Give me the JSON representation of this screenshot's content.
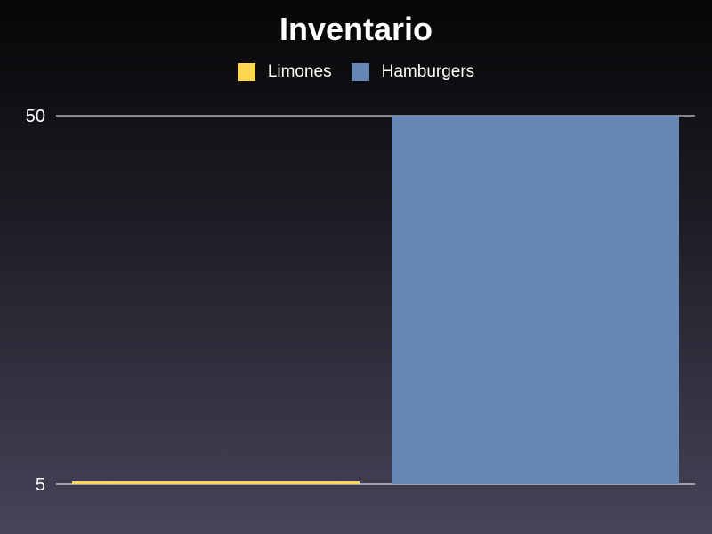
{
  "chart_data": {
    "type": "bar",
    "title": "Inventario",
    "xlabel": "",
    "ylabel": "",
    "scale": "log",
    "ylim": [
      5,
      50
    ],
    "yticks": [
      50,
      5
    ],
    "legend_position": "top-center",
    "grid": true,
    "series": [
      {
        "name": "Limones",
        "values": [
          5
        ],
        "color": "#ffd84f"
      },
      {
        "name": "Hamburgers",
        "values": [
          50
        ],
        "color": "#6786b4"
      }
    ]
  }
}
